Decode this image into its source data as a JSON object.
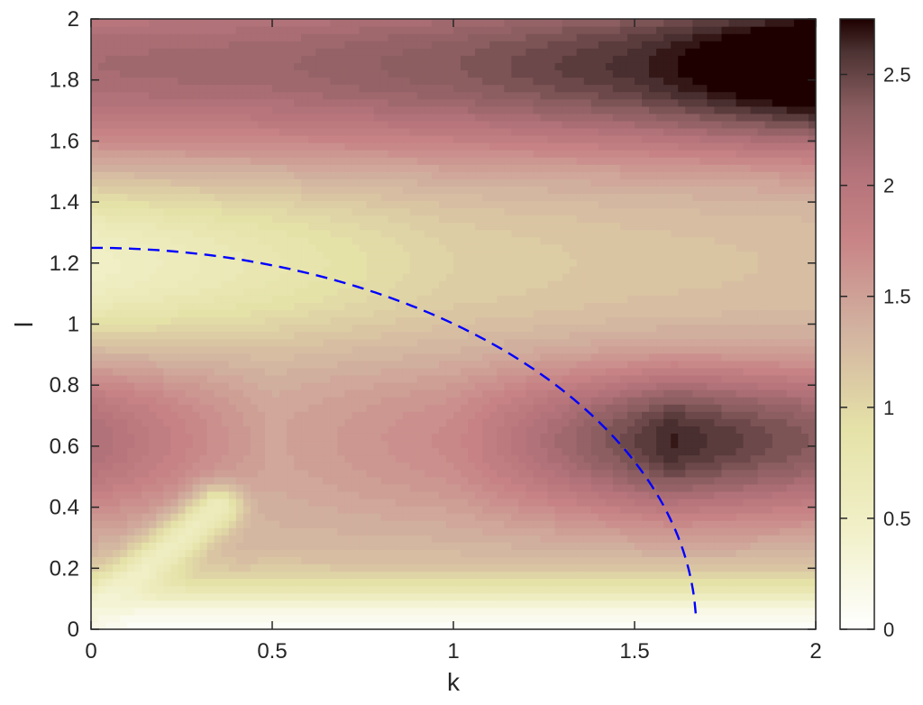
{
  "chart_data": {
    "type": "heatmap",
    "subtype": "filled-contour",
    "title": "",
    "xlabel": "k",
    "ylabel": "l",
    "xlim": [
      0,
      2
    ],
    "ylim": [
      0,
      2
    ],
    "x_ticks": [
      "0",
      "0.5",
      "1",
      "1.5",
      "2"
    ],
    "y_ticks": [
      "0",
      "0.2",
      "0.4",
      "0.6",
      "0.8",
      "1",
      "1.2",
      "1.4",
      "1.6",
      "1.8",
      "2"
    ],
    "grid": false,
    "colorbar": {
      "range": [
        0,
        2.75
      ],
      "ticks": [
        "0",
        "0.5",
        "1",
        "1.5",
        "2",
        "2.5"
      ],
      "colormap": "pink-reversed",
      "stops": [
        {
          "value": 0.0,
          "color": "#ffffff"
        },
        {
          "value": 0.45,
          "color": "#f1f0c8"
        },
        {
          "value": 0.9,
          "color": "#e5e2a8"
        },
        {
          "value": 1.35,
          "color": "#d2b2a0"
        },
        {
          "value": 1.75,
          "color": "#c88486"
        },
        {
          "value": 2.05,
          "color": "#b4737a"
        },
        {
          "value": 2.35,
          "color": "#8a5d60"
        },
        {
          "value": 2.6,
          "color": "#4d3333"
        },
        {
          "value": 2.75,
          "color": "#1e0000"
        }
      ]
    },
    "field_features": {
      "levels": 40,
      "bands": [
        {
          "l_center": 0.0,
          "width": 0.1,
          "value": 0.05
        },
        {
          "l_center": 0.62,
          "width": 0.22,
          "value_at_k": [
            [
              0,
              1.8
            ],
            [
              0.5,
              1.15
            ],
            [
              1.0,
              1.4
            ],
            [
              1.6,
              2.35
            ],
            [
              2.0,
              2.05
            ]
          ]
        },
        {
          "l_center": 1.2,
          "width": 0.22,
          "value_at_k": [
            [
              0,
              0.15
            ],
            [
              0.5,
              0.45
            ],
            [
              1.0,
              0.75
            ],
            [
              1.5,
              0.85
            ],
            [
              2.0,
              0.9
            ]
          ]
        },
        {
          "l_center": 1.85,
          "width": 0.25,
          "value_at_k": [
            [
              0,
              1.85
            ],
            [
              0.5,
              1.9
            ],
            [
              1.0,
              2.05
            ],
            [
              1.5,
              2.3
            ],
            [
              2.0,
              2.75
            ]
          ]
        }
      ],
      "low_ridge": {
        "from": [
          0,
          0.05
        ],
        "to": [
          0.35,
          0.4
        ],
        "value": 0.3
      },
      "maximum": {
        "k": 1.97,
        "l": 1.87,
        "value": 2.75
      }
    },
    "series": [
      {
        "style": "dashed",
        "color": "#0000ff",
        "k_end": 1.67,
        "l_start": 1.25,
        "description_points": [
          [
            0,
            1.25
          ],
          [
            0.5,
            1.2
          ],
          [
            1.0,
            1.0
          ],
          [
            1.25,
            0.83
          ],
          [
            1.5,
            0.52
          ],
          [
            1.6,
            0.34
          ],
          [
            1.67,
            0.05
          ]
        ]
      }
    ]
  }
}
